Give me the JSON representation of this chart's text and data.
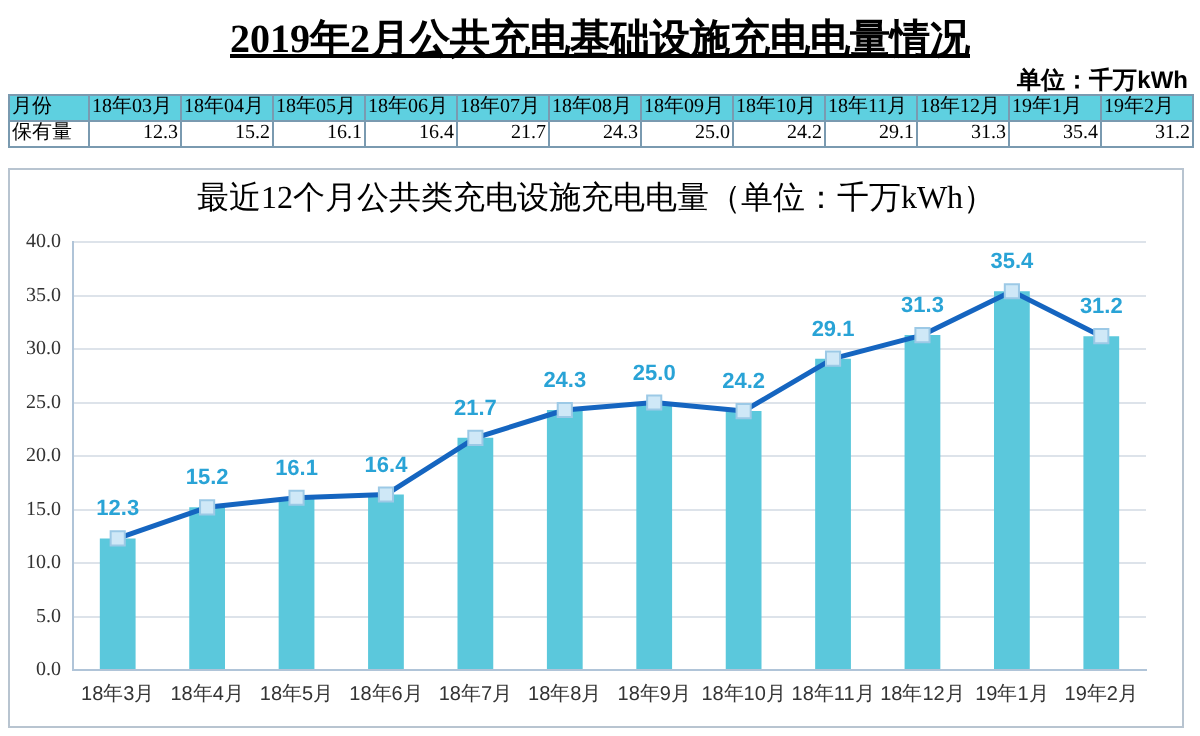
{
  "chart_data": {
    "type": "bar",
    "title": "2019年2月公共充电基础设施充电电量情况",
    "subtitle": "最近12个月公共类充电设施充电电量（单位：千万kWh）",
    "annotations": [
      "单位：千万kWh",
      "月份",
      "保有量",
      "18年03月",
      "18年04月",
      "18年05月",
      "18年06月",
      "18年07月",
      "18年08月",
      "18年09月",
      "18年10月",
      "18年11月",
      "18年12月",
      "19年1月",
      "19年2月"
    ],
    "categories": [
      "18年3月",
      "18年4月",
      "18年5月",
      "18年6月",
      "18年7月",
      "18年8月",
      "18年9月",
      "18年10月",
      "18年11月",
      "18年12月",
      "19年1月",
      "19年2月"
    ],
    "series": [
      {
        "color": "#5bc8dc",
        "values": [
          12.3,
          15.2,
          16.1,
          16.4,
          21.7,
          24.3,
          25.0,
          24.2,
          29.1,
          31.3,
          35.4,
          31.2
        ]
      },
      {
        "type": "line",
        "color": "#1565c0",
        "marker": "square",
        "line_style": "solid",
        "values": [
          12.3,
          15.2,
          16.1,
          16.4,
          21.7,
          24.3,
          25.0,
          24.2,
          29.1,
          31.3,
          35.4,
          31.2
        ],
        "value_labels": [
          "12.3",
          "15.2",
          "16.1",
          "16.4",
          "21.7",
          "24.3",
          "25.0",
          "24.2",
          "29.1",
          "31.3",
          "35.4",
          "31.2"
        ]
      }
    ],
    "ylim": [
      0,
      40
    ],
    "yticks": [
      {
        "value": 0,
        "label": "0.0"
      },
      {
        "value": 5,
        "label": "5.0"
      },
      {
        "value": 10,
        "label": "10.0"
      },
      {
        "value": 15,
        "label": "15.0"
      },
      {
        "value": 20,
        "label": "20.0"
      },
      {
        "value": 25,
        "label": "25.0"
      },
      {
        "value": 30,
        "label": "30.0"
      },
      {
        "value": 35,
        "label": "35.0"
      },
      {
        "value": 40,
        "label": "40.0"
      }
    ],
    "grid": "y",
    "legend": false
  }
}
